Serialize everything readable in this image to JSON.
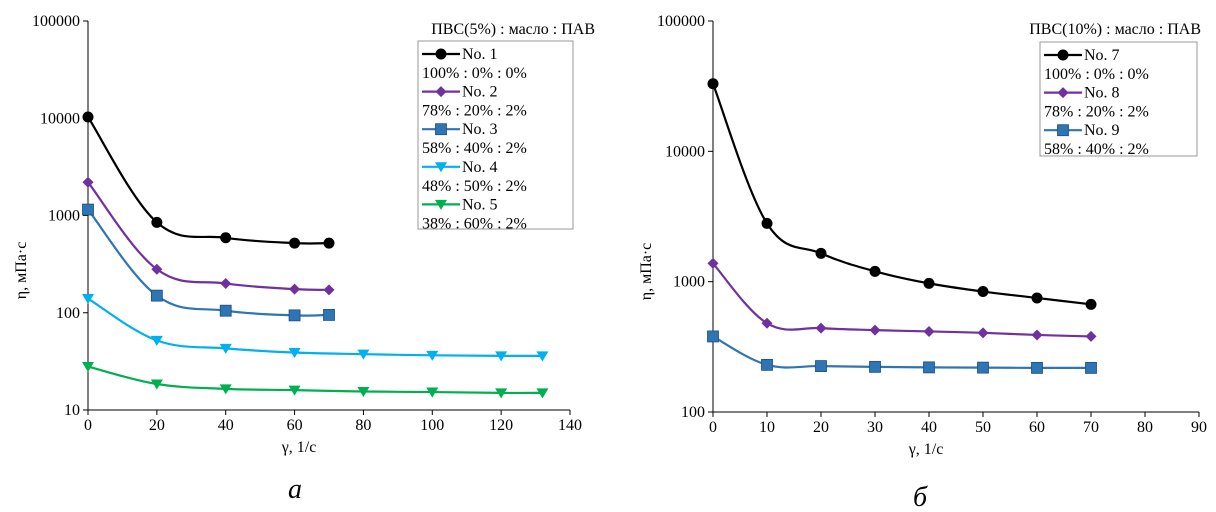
{
  "chart_data": [
    {
      "panel_label": "а",
      "type": "line",
      "xlabel": "γ, 1/с",
      "ylabel": "η, мПа·с",
      "xlim": [
        0,
        140
      ],
      "ylim": [
        10,
        100000
      ],
      "yscale": "log",
      "xticks": [
        0,
        20,
        40,
        60,
        80,
        100,
        120,
        140
      ],
      "yticks": [
        10,
        100,
        1000,
        10000,
        100000
      ],
      "legend_title": "ПВС(5%) : масло : ПАВ",
      "legend_position": "top-right",
      "series": [
        {
          "name": "No. 1",
          "composition": "100% : 0% : 0%",
          "color": "#000000",
          "marker": "circle",
          "x": [
            0,
            20,
            40,
            60,
            70
          ],
          "y": [
            10300,
            850,
            590,
            520,
            520
          ]
        },
        {
          "name": "No. 2",
          "composition": "78% : 20% : 2%",
          "color": "#7030a0",
          "marker": "diamond",
          "x": [
            0,
            20,
            40,
            60,
            70
          ],
          "y": [
            2200,
            280,
            200,
            175,
            172
          ]
        },
        {
          "name": "No. 3",
          "composition": "58% : 40% : 2%",
          "color": "#2e75b6",
          "marker": "square",
          "x": [
            0,
            20,
            40,
            60,
            70
          ],
          "y": [
            1150,
            150,
            105,
            94,
            95
          ]
        },
        {
          "name": "No. 4",
          "composition": "48% : 50% : 2%",
          "color": "#00b0f0",
          "marker": "triangle-down",
          "x": [
            0,
            20,
            40,
            60,
            80,
            100,
            120,
            132
          ],
          "y": [
            140,
            52,
            43,
            39,
            37.5,
            36.5,
            36,
            36
          ]
        },
        {
          "name": "No. 5",
          "composition": "38% : 60% : 2%",
          "color": "#00b050",
          "marker": "triangle-down",
          "x": [
            0,
            20,
            40,
            60,
            80,
            100,
            120,
            132
          ],
          "y": [
            28,
            18.5,
            16.5,
            16,
            15.5,
            15.3,
            15,
            15
          ]
        }
      ]
    },
    {
      "panel_label": "б",
      "type": "line",
      "xlabel": "γ, 1/с",
      "ylabel": "η, мПа·с",
      "xlim": [
        0,
        90
      ],
      "ylim": [
        100,
        100000
      ],
      "yscale": "log",
      "xticks": [
        0,
        10,
        20,
        30,
        40,
        50,
        60,
        70,
        80,
        90
      ],
      "yticks": [
        100,
        1000,
        10000,
        100000
      ],
      "legend_title": "ПВС(10%) : масло : ПАВ",
      "legend_position": "top-right",
      "series": [
        {
          "name": "No. 7",
          "composition": "100% : 0% : 0%",
          "color": "#000000",
          "marker": "circle",
          "x": [
            0,
            10,
            20,
            30,
            40,
            50,
            60,
            70
          ],
          "y": [
            33000,
            2800,
            1650,
            1200,
            970,
            840,
            750,
            670
          ]
        },
        {
          "name": "No. 8",
          "composition": "78% : 20% : 2%",
          "color": "#7030a0",
          "marker": "diamond",
          "x": [
            0,
            10,
            20,
            30,
            40,
            50,
            60,
            70
          ],
          "y": [
            1380,
            480,
            440,
            425,
            415,
            405,
            390,
            380
          ]
        },
        {
          "name": "No. 9",
          "composition": "58% : 40% : 2%",
          "color": "#2e75b6",
          "marker": "square",
          "x": [
            0,
            10,
            20,
            30,
            40,
            50,
            60,
            70
          ],
          "y": [
            380,
            230,
            225,
            222,
            220,
            219,
            218,
            218
          ]
        }
      ]
    }
  ]
}
